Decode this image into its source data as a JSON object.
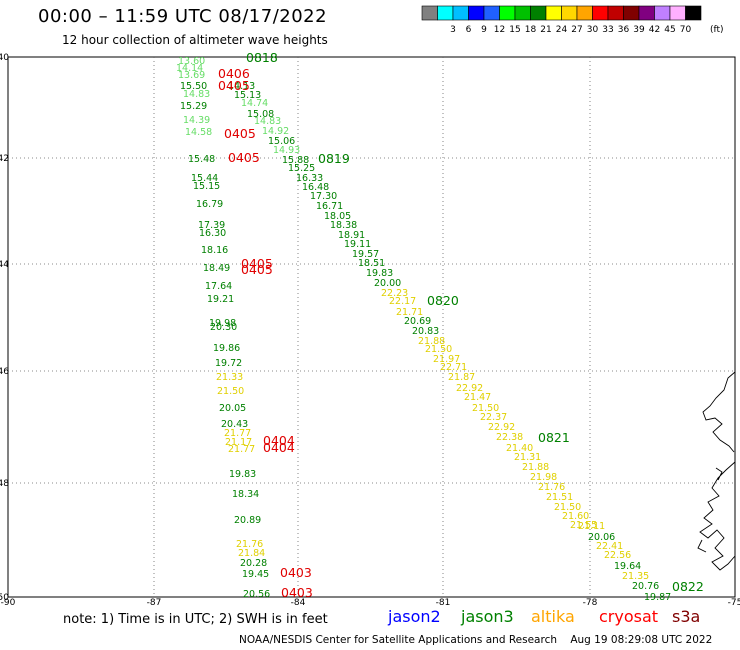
{
  "header": {
    "title": "00:00 – 11:59 UTC 08/17/2022",
    "subtitle": "12 hour collection of altimeter wave heights"
  },
  "colorbar": {
    "unit": "(ft)",
    "bins": [
      {
        "color": "#808080",
        "label": ""
      },
      {
        "color": "#00ffff",
        "label": "3"
      },
      {
        "color": "#00bfff",
        "label": "6"
      },
      {
        "color": "#0000ff",
        "label": "9"
      },
      {
        "color": "#2060ff",
        "label": "12"
      },
      {
        "color": "#00ff00",
        "label": "15"
      },
      {
        "color": "#00c000",
        "label": "18"
      },
      {
        "color": "#008000",
        "label": "21"
      },
      {
        "color": "#ffff00",
        "label": "24"
      },
      {
        "color": "#ffd700",
        "label": "27"
      },
      {
        "color": "#ffa500",
        "label": "30"
      },
      {
        "color": "#ff0000",
        "label": "33"
      },
      {
        "color": "#c00000",
        "label": "36"
      },
      {
        "color": "#800000",
        "label": "39"
      },
      {
        "color": "#800080",
        "label": "42"
      },
      {
        "color": "#c080ff",
        "label": "45"
      },
      {
        "color": "#ffb0ff",
        "label": "70"
      },
      {
        "color": "#000000",
        "label": ""
      }
    ]
  },
  "axes": {
    "lat_labels": [
      "-40",
      "-42",
      "-44",
      "-46",
      "-48",
      "-50"
    ],
    "lon_labels": [
      "-90",
      "-87",
      "-84",
      "-81",
      "-78",
      "-75"
    ]
  },
  "tracks": {
    "left_values": [
      {
        "text": "13.60",
        "color": "#66dd66"
      },
      {
        "text": "14.14",
        "color": "#66dd66"
      },
      {
        "text": "13.69",
        "color": "#66dd66"
      },
      {
        "text": "15.50",
        "color": "#008000"
      },
      {
        "text": "14.83",
        "color": "#66dd66"
      },
      {
        "text": "15.29",
        "color": "#008000"
      },
      {
        "text": "14.39",
        "color": "#66dd66"
      },
      {
        "text": "14.58",
        "color": "#66dd66"
      },
      {
        "text": "15.48",
        "color": "#008000"
      },
      {
        "text": "15.44",
        "color": "#008000"
      },
      {
        "text": "15.15",
        "color": "#008000"
      },
      {
        "text": "16.79",
        "color": "#008000"
      },
      {
        "text": "17.39",
        "color": "#008000"
      },
      {
        "text": "16.30",
        "color": "#008000"
      },
      {
        "text": "18.16",
        "color": "#008000"
      },
      {
        "text": "18.49",
        "color": "#008000"
      },
      {
        "text": "17.64",
        "color": "#008000"
      },
      {
        "text": "19.21",
        "color": "#008000"
      },
      {
        "text": "19.98",
        "color": "#008000"
      },
      {
        "text": "20.30",
        "color": "#008000"
      },
      {
        "text": "19.86",
        "color": "#008000"
      },
      {
        "text": "19.72",
        "color": "#008000"
      },
      {
        "text": "21.33",
        "color": "#e0d000"
      },
      {
        "text": "21.50",
        "color": "#e0d000"
      },
      {
        "text": "20.05",
        "color": "#008000"
      },
      {
        "text": "20.43",
        "color": "#008000"
      },
      {
        "text": "21.77",
        "color": "#e0d000"
      },
      {
        "text": "21.17",
        "color": "#e0d000"
      },
      {
        "text": "21.77",
        "color": "#e0d000"
      },
      {
        "text": "19.83",
        "color": "#008000"
      },
      {
        "text": "18.34",
        "color": "#008000"
      },
      {
        "text": "20.89",
        "color": "#008000"
      },
      {
        "text": "21.76",
        "color": "#e0d000"
      },
      {
        "text": "21.84",
        "color": "#e0d000"
      },
      {
        "text": "20.28",
        "color": "#008000"
      },
      {
        "text": "19.45",
        "color": "#008000"
      },
      {
        "text": "20.56",
        "color": "#008000"
      }
    ],
    "right_values": [
      {
        "text": "14.13",
        "color": "#008000"
      },
      {
        "text": "15.13",
        "color": "#008000"
      },
      {
        "text": "14.74",
        "color": "#66dd66"
      },
      {
        "text": "15.08",
        "color": "#008000"
      },
      {
        "text": "14.83",
        "color": "#66dd66"
      },
      {
        "text": "14.92",
        "color": "#66dd66"
      },
      {
        "text": "15.06",
        "color": "#008000"
      },
      {
        "text": "14.93",
        "color": "#66dd66"
      },
      {
        "text": "15.88",
        "color": "#008000"
      },
      {
        "text": "15.25",
        "color": "#008000"
      },
      {
        "text": "16.33",
        "color": "#008000"
      },
      {
        "text": "16.48",
        "color": "#008000"
      },
      {
        "text": "17.30",
        "color": "#008000"
      },
      {
        "text": "16.71",
        "color": "#008000"
      },
      {
        "text": "18.05",
        "color": "#008000"
      },
      {
        "text": "18.38",
        "color": "#008000"
      },
      {
        "text": "18.91",
        "color": "#008000"
      },
      {
        "text": "19.11",
        "color": "#008000"
      },
      {
        "text": "19.57",
        "color": "#008000"
      },
      {
        "text": "18.51",
        "color": "#008000"
      },
      {
        "text": "19.83",
        "color": "#008000"
      },
      {
        "text": "20.00",
        "color": "#008000"
      },
      {
        "text": "22.23",
        "color": "#e0d000"
      },
      {
        "text": "22.17",
        "color": "#e0d000"
      },
      {
        "text": "21.71",
        "color": "#e0d000"
      },
      {
        "text": "20.69",
        "color": "#008000"
      },
      {
        "text": "20.83",
        "color": "#008000"
      },
      {
        "text": "21.88",
        "color": "#e0d000"
      },
      {
        "text": "21.50",
        "color": "#e0d000"
      },
      {
        "text": "21.97",
        "color": "#e0d000"
      },
      {
        "text": "22.71",
        "color": "#e0d000"
      },
      {
        "text": "21.87",
        "color": "#e0d000"
      },
      {
        "text": "22.92",
        "color": "#e0d000"
      },
      {
        "text": "21.47",
        "color": "#e0d000"
      },
      {
        "text": "21.50",
        "color": "#e0d000"
      },
      {
        "text": "22.37",
        "color": "#e0d000"
      },
      {
        "text": "22.92",
        "color": "#e0d000"
      },
      {
        "text": "22.38",
        "color": "#e0d000"
      },
      {
        "text": "21.40",
        "color": "#e0d000"
      },
      {
        "text": "21.31",
        "color": "#e0d000"
      },
      {
        "text": "21.88",
        "color": "#e0d000"
      },
      {
        "text": "21.98",
        "color": "#e0d000"
      },
      {
        "text": "21.76",
        "color": "#e0d000"
      },
      {
        "text": "21.51",
        "color": "#e0d000"
      },
      {
        "text": "21.50",
        "color": "#e0d000"
      },
      {
        "text": "21.60",
        "color": "#e0d000"
      },
      {
        "text": "21.55",
        "color": "#e0d000"
      },
      {
        "text": "21.11",
        "color": "#e0d000"
      },
      {
        "text": "20.06",
        "color": "#008000"
      },
      {
        "text": "22.41",
        "color": "#e0d000"
      },
      {
        "text": "22.56",
        "color": "#e0d000"
      },
      {
        "text": "19.64",
        "color": "#008000"
      },
      {
        "text": "21.35",
        "color": "#e0d000"
      },
      {
        "text": "20.76",
        "color": "#008000"
      },
      {
        "text": "19.87",
        "color": "#008000"
      }
    ],
    "time_labels": [
      {
        "text": "0818",
        "color": "#008000"
      },
      {
        "text": "0406",
        "color": "#e00000"
      },
      {
        "text": "0405",
        "color": "#e00000"
      },
      {
        "text": "0405",
        "color": "#e00000"
      },
      {
        "text": "0405",
        "color": "#e00000"
      },
      {
        "text": "0819",
        "color": "#008000"
      },
      {
        "text": "0405",
        "color": "#e00000"
      },
      {
        "text": "0405",
        "color": "#e00000"
      },
      {
        "text": "0820",
        "color": "#008000"
      },
      {
        "text": "0404",
        "color": "#e00000"
      },
      {
        "text": "0404",
        "color": "#e00000"
      },
      {
        "text": "0821",
        "color": "#008000"
      },
      {
        "text": "0403",
        "color": "#e00000"
      },
      {
        "text": "0403",
        "color": "#e00000"
      },
      {
        "text": "0822",
        "color": "#008000"
      }
    ]
  },
  "footer": {
    "note": "note: 1) Time is in UTC; 2) SWH is in feet",
    "missions": [
      {
        "name": "jason2",
        "color": "#0000ff"
      },
      {
        "name": "jason3",
        "color": "#008000"
      },
      {
        "name": "altika",
        "color": "#ffa500"
      },
      {
        "name": "cryosat",
        "color": "#ff0000"
      },
      {
        "name": "s3a",
        "color": "#800000"
      }
    ],
    "credit": "NOAA/NESDIS Center for Satellite Applications and Research    Aug 19 08:29:08 UTC 2022"
  }
}
